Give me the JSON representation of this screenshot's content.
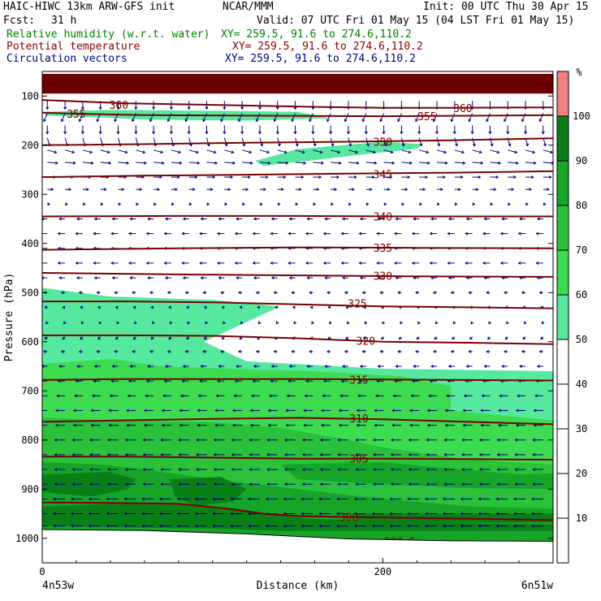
{
  "header": {
    "model": "HAIC-HIWC 13km ARW-GFS init",
    "org": "NCAR/MMM",
    "init": "Init: 00 UTC Thu 30 Apr 15",
    "fcst_label": "Fcst:",
    "fcst_value": "31 h",
    "valid": "Valid: 07 UTC Fri 01 May 15 (04 LST Fri 01 May 15)",
    "field_rh": "Relative humidity (w.r.t. water)",
    "field_theta": "Potential temperature",
    "field_vec": "Circulation vectors",
    "xy_rh": "XY= 259.5, 91.6 to 274.6,110.2",
    "xy_theta": "XY= 259.5, 91.6 to 274.6,110.2",
    "xy_vec": "XY= 259.5, 91.6 to 274.6,110.2"
  },
  "colors": {
    "rh_text": "#008000",
    "theta_text": "#8b0000",
    "vec_text": "#000080",
    "theta_line": "#7a0000",
    "vector": "#000080",
    "terrain": "#6b0000"
  },
  "chart_data": {
    "type": "cross-section",
    "xlabel": "Distance (km)",
    "ylabel": "Pressure (hPa)",
    "xlim": [
      0,
      300
    ],
    "ylim": [
      1050,
      50
    ],
    "y_scale": "linear",
    "x_ticks": [
      0,
      200
    ],
    "y_ticks": [
      100,
      200,
      300,
      400,
      500,
      600,
      700,
      800,
      900,
      1000
    ],
    "x_endpoint_labels": [
      "4n53w",
      "6n51w"
    ],
    "colorbar": {
      "unit": "%",
      "levels": [
        10,
        20,
        30,
        40,
        50,
        60,
        70,
        80,
        90,
        100
      ],
      "fills": [
        {
          "from": 50,
          "to": 60,
          "color": "#55e89e"
        },
        {
          "from": 60,
          "to": 70,
          "color": "#3ddc50"
        },
        {
          "from": 70,
          "to": 80,
          "color": "#29c23a"
        },
        {
          "from": 80,
          "to": 90,
          "color": "#17a528"
        },
        {
          "from": 90,
          "to": 100,
          "color": "#0a7f18"
        },
        {
          "from": 100,
          "to": 110,
          "color": "#f08080"
        }
      ]
    },
    "theta_contours": [
      {
        "label": "355",
        "points": [
          [
            0,
            134
          ],
          [
            20,
            136
          ],
          [
            60,
            139
          ],
          [
            120,
            140
          ],
          [
            200,
            141
          ],
          [
            260,
            140
          ],
          [
            300,
            139
          ]
        ]
      },
      {
        "label": "360",
        "points": [
          [
            0,
            108
          ],
          [
            50,
            115
          ],
          [
            100,
            118
          ],
          [
            160,
            122
          ],
          [
            200,
            124
          ],
          [
            240,
            124
          ],
          [
            300,
            123
          ]
        ]
      },
      {
        "label": "350",
        "points": [
          [
            0,
            200
          ],
          [
            60,
            198
          ],
          [
            120,
            195
          ],
          [
            180,
            193
          ],
          [
            240,
            190
          ],
          [
            300,
            186
          ]
        ]
      },
      {
        "label": "345",
        "points": [
          [
            0,
            265
          ],
          [
            60,
            262
          ],
          [
            120,
            260
          ],
          [
            180,
            258
          ],
          [
            240,
            256
          ],
          [
            300,
            253
          ]
        ]
      },
      {
        "label": "340",
        "points": [
          [
            0,
            345
          ],
          [
            80,
            344
          ],
          [
            150,
            344
          ],
          [
            220,
            345
          ],
          [
            300,
            345
          ]
        ]
      },
      {
        "label": "335",
        "points": [
          [
            0,
            413
          ],
          [
            80,
            410
          ],
          [
            150,
            408
          ],
          [
            220,
            409
          ],
          [
            300,
            410
          ]
        ]
      },
      {
        "label": "330",
        "points": [
          [
            0,
            460
          ],
          [
            80,
            463
          ],
          [
            150,
            465
          ],
          [
            220,
            467
          ],
          [
            300,
            468
          ]
        ]
      },
      {
        "label": "325",
        "points": [
          [
            0,
            518
          ],
          [
            50,
            518
          ],
          [
            100,
            520
          ],
          [
            150,
            524
          ],
          [
            200,
            528
          ],
          [
            250,
            530
          ],
          [
            300,
            532
          ]
        ]
      },
      {
        "label": "320",
        "points": [
          [
            0,
            587
          ],
          [
            50,
            587
          ],
          [
            100,
            588
          ],
          [
            150,
            593
          ],
          [
            200,
            600
          ],
          [
            250,
            602
          ],
          [
            300,
            605
          ]
        ]
      },
      {
        "label": "315",
        "points": [
          [
            0,
            678
          ],
          [
            50,
            676
          ],
          [
            100,
            676
          ],
          [
            150,
            676
          ],
          [
            200,
            677
          ],
          [
            250,
            678
          ],
          [
            300,
            679
          ]
        ]
      },
      {
        "label": "310",
        "points": [
          [
            0,
            763
          ],
          [
            50,
            760
          ],
          [
            100,
            757
          ],
          [
            150,
            755
          ],
          [
            200,
            758
          ],
          [
            250,
            763
          ],
          [
            300,
            768
          ]
        ]
      },
      {
        "label": "305",
        "points": [
          [
            0,
            834
          ],
          [
            50,
            834
          ],
          [
            100,
            836
          ],
          [
            150,
            838
          ],
          [
            200,
            838
          ],
          [
            250,
            839
          ],
          [
            300,
            840
          ]
        ]
      },
      {
        "label": "300",
        "points": [
          [
            0,
            927
          ],
          [
            40,
            928
          ],
          [
            80,
            930
          ],
          [
            110,
            940
          ],
          [
            130,
            950
          ],
          [
            150,
            955
          ],
          [
            200,
            958
          ],
          [
            250,
            960
          ],
          [
            300,
            963
          ]
        ]
      },
      {
        "label": "298.5",
        "points": [
          [
            0,
            992
          ],
          [
            40,
            993
          ],
          [
            100,
            1000
          ],
          [
            150,
            1004
          ],
          [
            200,
            1006
          ],
          [
            250,
            1010
          ],
          [
            300,
            1012
          ]
        ]
      }
    ],
    "rh_regions": [
      {
        "rh": 100,
        "points": [
          [
            0,
            55
          ],
          [
            300,
            55
          ],
          [
            300,
            95
          ],
          [
            0,
            95
          ]
        ]
      },
      {
        "rh": 50,
        "points": [
          [
            2,
            140
          ],
          [
            25,
            142
          ],
          [
            60,
            148
          ],
          [
            120,
            150
          ],
          [
            170,
            145
          ],
          [
            150,
            132
          ],
          [
            100,
            130
          ],
          [
            40,
            128
          ],
          [
            2,
            132
          ]
        ]
      },
      {
        "rh": 50,
        "points": [
          [
            130,
            242
          ],
          [
            180,
            222
          ],
          [
            220,
            207
          ],
          [
            223,
            198
          ],
          [
            200,
            193
          ],
          [
            150,
            208
          ],
          [
            125,
            232
          ]
        ]
      },
      {
        "rh": 50,
        "points": [
          [
            0,
            490
          ],
          [
            40,
            508
          ],
          [
            100,
            515
          ],
          [
            140,
            528
          ],
          [
            126,
            550
          ],
          [
            95,
            600
          ],
          [
            120,
            640
          ],
          [
            200,
            655
          ],
          [
            300,
            660
          ],
          [
            300,
            1050
          ],
          [
            0,
            1050
          ]
        ]
      },
      {
        "rh": 60,
        "points": [
          [
            0,
            645
          ],
          [
            40,
            635
          ],
          [
            70,
            650
          ],
          [
            110,
            655
          ],
          [
            160,
            660
          ],
          [
            210,
            670
          ],
          [
            240,
            690
          ],
          [
            240,
            740
          ],
          [
            300,
            760
          ],
          [
            300,
            1050
          ],
          [
            0,
            1050
          ]
        ]
      },
      {
        "rh": 70,
        "points": [
          [
            0,
            755
          ],
          [
            40,
            760
          ],
          [
            100,
            764
          ],
          [
            140,
            775
          ],
          [
            180,
            800
          ],
          [
            200,
            815
          ],
          [
            250,
            840
          ],
          [
            300,
            850
          ],
          [
            300,
            1050
          ],
          [
            0,
            1050
          ]
        ]
      },
      {
        "rh": 80,
        "points": [
          [
            0,
            845
          ],
          [
            35,
            850
          ],
          [
            60,
            860
          ],
          [
            100,
            880
          ],
          [
            150,
            900
          ],
          [
            200,
            920
          ],
          [
            250,
            935
          ],
          [
            300,
            940
          ],
          [
            300,
            1050
          ],
          [
            0,
            1050
          ]
        ]
      },
      {
        "rh": 80,
        "points": [
          [
            140,
            850
          ],
          [
            200,
            845
          ],
          [
            245,
            860
          ],
          [
            280,
            870
          ],
          [
            300,
            868
          ],
          [
            300,
            900
          ],
          [
            250,
            898
          ],
          [
            200,
            890
          ],
          [
            150,
            880
          ]
        ]
      },
      {
        "rh": 90,
        "points": [
          [
            0,
            870
          ],
          [
            40,
            865
          ],
          [
            55,
            880
          ],
          [
            50,
            900
          ],
          [
            30,
            915
          ],
          [
            10,
            910
          ],
          [
            0,
            905
          ]
        ]
      },
      {
        "rh": 90,
        "points": [
          [
            75,
            880
          ],
          [
            105,
            875
          ],
          [
            120,
            900
          ],
          [
            112,
            925
          ],
          [
            90,
            935
          ],
          [
            78,
            915
          ]
        ]
      },
      {
        "rh": 90,
        "points": [
          [
            0,
            935
          ],
          [
            40,
            930
          ],
          [
            80,
            932
          ],
          [
            120,
            945
          ],
          [
            155,
            960
          ],
          [
            200,
            965
          ],
          [
            260,
            970
          ],
          [
            300,
            972
          ],
          [
            300,
            985
          ],
          [
            250,
            985
          ],
          [
            180,
            985
          ],
          [
            140,
            985
          ],
          [
            100,
            980
          ],
          [
            50,
            978
          ],
          [
            0,
            975
          ]
        ]
      },
      {
        "rh": 90,
        "points": [
          [
            185,
            950
          ],
          [
            300,
            950
          ],
          [
            300,
            968
          ],
          [
            185,
            968
          ]
        ]
      }
    ],
    "terrain_line": {
      "points": [
        [
          0,
          983
        ],
        [
          60,
          985
        ],
        [
          120,
          992
        ],
        [
          180,
          1002
        ],
        [
          240,
          1006
        ],
        [
          300,
          1007
        ]
      ]
    },
    "vector_field": {
      "description": "winds per pressure level",
      "levels": [
        {
          "p": 110,
          "u": 0,
          "w": -1
        },
        {
          "p": 135,
          "u": -0.3,
          "w": -1
        },
        {
          "p": 160,
          "u": 0,
          "w": -1
        },
        {
          "p": 185,
          "u": 0.2,
          "w": -1
        },
        {
          "p": 210,
          "u": 0.8,
          "w": -0.3
        },
        {
          "p": 235,
          "u": 0.9,
          "w": -0.1
        },
        {
          "p": 265,
          "u": 0.7,
          "w": 0
        },
        {
          "p": 290,
          "u": 0.5,
          "w": 0
        },
        {
          "p": 320,
          "u": 0.2,
          "w": 0
        },
        {
          "p": 350,
          "u": -0.5,
          "w": 0
        },
        {
          "p": 380,
          "u": -0.6,
          "w": 0
        },
        {
          "p": 410,
          "u": -0.6,
          "w": 0
        },
        {
          "p": 440,
          "u": -0.6,
          "w": 0
        },
        {
          "p": 470,
          "u": -0.5,
          "w": 0
        },
        {
          "p": 500,
          "u": -0.3,
          "w": 0
        },
        {
          "p": 530,
          "u": -0.2,
          "w": 0
        },
        {
          "p": 560,
          "u": -0.1,
          "w": -0.2
        },
        {
          "p": 590,
          "u": -0.2,
          "w": -0.3
        },
        {
          "p": 620,
          "u": -0.3,
          "w": 0
        },
        {
          "p": 650,
          "u": -0.5,
          "w": 0
        },
        {
          "p": 680,
          "u": -0.6,
          "w": 0
        },
        {
          "p": 710,
          "u": -0.7,
          "w": 0
        },
        {
          "p": 740,
          "u": -0.8,
          "w": 0
        },
        {
          "p": 770,
          "u": -0.8,
          "w": 0
        },
        {
          "p": 800,
          "u": -0.9,
          "w": 0
        },
        {
          "p": 830,
          "u": -0.9,
          "w": 0
        },
        {
          "p": 860,
          "u": -0.9,
          "w": 0
        },
        {
          "p": 890,
          "u": -0.9,
          "w": 0
        },
        {
          "p": 920,
          "u": -1,
          "w": 0
        },
        {
          "p": 950,
          "u": -1,
          "w": 0
        },
        {
          "p": 975,
          "u": -1,
          "w": 0
        }
      ]
    }
  }
}
